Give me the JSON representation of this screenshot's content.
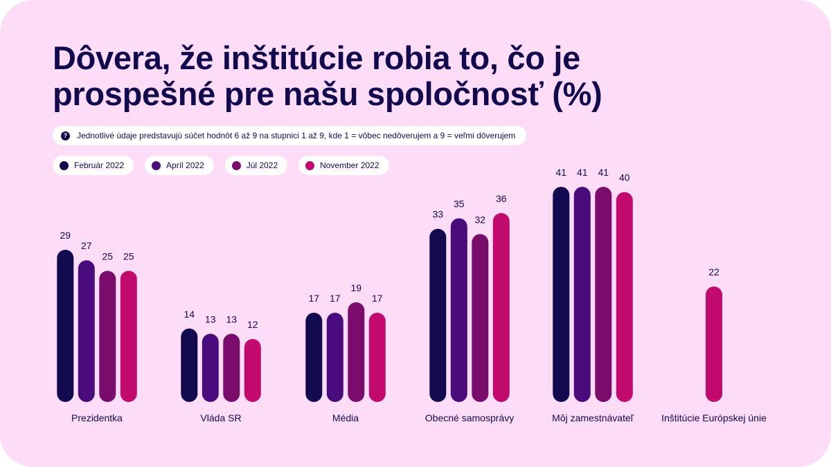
{
  "header": {
    "title": "Dôvera, že inštitúcie robia to, čo je prospešné pre našu spoločnosť (%)"
  },
  "note": {
    "icon": "question-icon",
    "text": "Jednotlivé údaje predstavujú súčet hodnôt 6 až 9 na stupnici 1 až 9, kde 1 = vôbec nedôverujem a 9 = veľmi dôverujem"
  },
  "colors": {
    "background": "#fcdcf6",
    "text": "#120a4e"
  },
  "chart_data": {
    "type": "bar",
    "title": "Dôvera, že inštitúcie robia to, čo je prospešné pre našu spoločnosť (%)",
    "categories": [
      "Prezidentka",
      "Vláda SR",
      "Média",
      "Obecné samosprávy",
      "Môj zamestnávateľ",
      "Inštitúcie Európskej únie"
    ],
    "series": [
      {
        "name": "Február 2022",
        "color": "#120a4e",
        "values": [
          29,
          14,
          17,
          33,
          41,
          null
        ]
      },
      {
        "name": "Apríl 2022",
        "color": "#4a0b7c",
        "values": [
          27,
          13,
          17,
          35,
          41,
          null
        ]
      },
      {
        "name": "Júl 2022",
        "color": "#7a0d6b",
        "values": [
          25,
          13,
          19,
          32,
          41,
          null
        ]
      },
      {
        "name": "November 2022",
        "color": "#c2096e",
        "values": [
          25,
          12,
          17,
          36,
          40,
          22
        ]
      }
    ],
    "ylim": [
      0,
      41
    ],
    "grid": false,
    "legend": "top-left"
  }
}
